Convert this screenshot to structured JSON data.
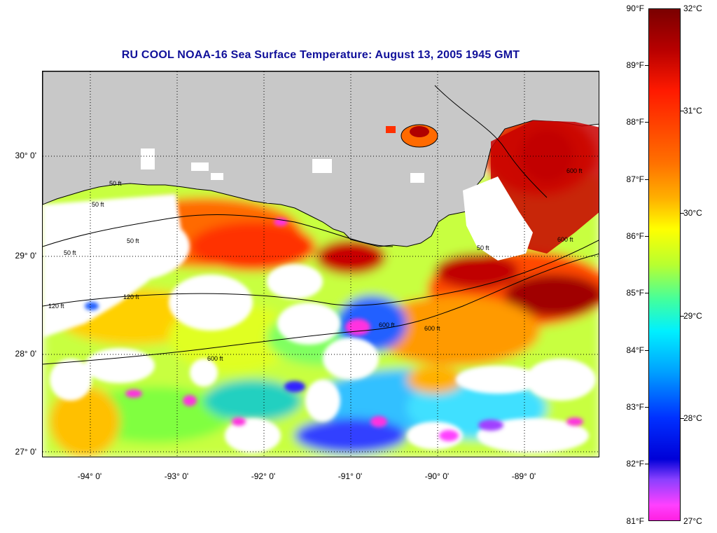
{
  "title": "RU COOL  NOAA-16  Sea Surface Temperature:  August 13, 2005 1945 GMT",
  "map": {
    "lat_labels": [
      "30° 0'",
      "29° 0'",
      "28° 0'",
      "27° 0'"
    ],
    "lon_labels": [
      "-94° 0'",
      "-93° 0'",
      "-92° 0'",
      "-91° 0'",
      "-90° 0'",
      "-89° 0'"
    ],
    "contour_labels": [
      "50 ft",
      "50 ft",
      "50 ft",
      "50 ft",
      "120 ft",
      "120 ft",
      "600 ft",
      "600 ft",
      "600 ft",
      "600 ft",
      "50 ft",
      "600 ft"
    ],
    "colors": {
      "land": "#c8c8c8",
      "cloud": "#ffffff",
      "contour": "#000000"
    }
  },
  "colorbar": {
    "fahrenheit": [
      "90°F",
      "89°F",
      "88°F",
      "87°F",
      "86°F",
      "85°F",
      "84°F",
      "83°F",
      "82°F",
      "81°F"
    ],
    "celsius": [
      "32°C",
      "31°C",
      "30°C",
      "29°C",
      "28°C",
      "27°C"
    ],
    "range_f": [
      81,
      90
    ],
    "range_c": [
      27.22,
      32.22
    ]
  }
}
